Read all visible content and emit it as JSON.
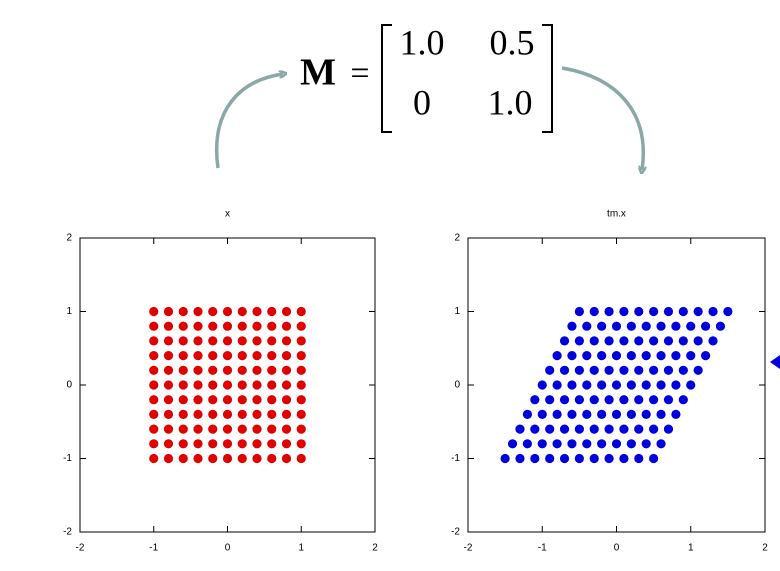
{
  "equation": {
    "symbol": "M",
    "equals": "=",
    "matrix": [
      [
        "1.0",
        "0.5"
      ],
      [
        "0",
        "1.0"
      ]
    ]
  },
  "chart_data": [
    {
      "type": "scatter",
      "title": "x",
      "color": "#e00000",
      "xlim": [
        -2,
        2
      ],
      "ylim": [
        -2,
        2
      ],
      "xticks": [
        -2,
        -1,
        0,
        1,
        2
      ],
      "yticks": [
        -2,
        -1,
        0,
        1,
        2
      ],
      "x": [
        -1,
        -0.8,
        -0.6,
        -0.4,
        -0.2,
        0,
        0.2,
        0.4,
        0.6,
        0.8,
        1,
        -1,
        -0.8,
        -0.6,
        -0.4,
        -0.2,
        0,
        0.2,
        0.4,
        0.6,
        0.8,
        1,
        -1,
        -0.8,
        -0.6,
        -0.4,
        -0.2,
        0,
        0.2,
        0.4,
        0.6,
        0.8,
        1,
        -1,
        -0.8,
        -0.6,
        -0.4,
        -0.2,
        0,
        0.2,
        0.4,
        0.6,
        0.8,
        1,
        -1,
        -0.8,
        -0.6,
        -0.4,
        -0.2,
        0,
        0.2,
        0.4,
        0.6,
        0.8,
        1,
        -1,
        -0.8,
        -0.6,
        -0.4,
        -0.2,
        0,
        0.2,
        0.4,
        0.6,
        0.8,
        1,
        -1,
        -0.8,
        -0.6,
        -0.4,
        -0.2,
        0,
        0.2,
        0.4,
        0.6,
        0.8,
        1,
        -1,
        -0.8,
        -0.6,
        -0.4,
        -0.2,
        0,
        0.2,
        0.4,
        0.6,
        0.8,
        1,
        -1,
        -0.8,
        -0.6,
        -0.4,
        -0.2,
        0,
        0.2,
        0.4,
        0.6,
        0.8,
        1,
        -1,
        -0.8,
        -0.6,
        -0.4,
        -0.2,
        0,
        0.2,
        0.4,
        0.6,
        0.8,
        1,
        -1,
        -0.8,
        -0.6,
        -0.4,
        -0.2,
        0,
        0.2,
        0.4,
        0.6,
        0.8,
        1
      ],
      "values": [
        -1,
        -1,
        -1,
        -1,
        -1,
        -1,
        -1,
        -1,
        -1,
        -1,
        -1,
        -0.8,
        -0.8,
        -0.8,
        -0.8,
        -0.8,
        -0.8,
        -0.8,
        -0.8,
        -0.8,
        -0.8,
        -0.8,
        -0.6,
        -0.6,
        -0.6,
        -0.6,
        -0.6,
        -0.6,
        -0.6,
        -0.6,
        -0.6,
        -0.6,
        -0.6,
        -0.4,
        -0.4,
        -0.4,
        -0.4,
        -0.4,
        -0.4,
        -0.4,
        -0.4,
        -0.4,
        -0.4,
        -0.4,
        -0.2,
        -0.2,
        -0.2,
        -0.2,
        -0.2,
        -0.2,
        -0.2,
        -0.2,
        -0.2,
        -0.2,
        -0.2,
        0,
        0,
        0,
        0,
        0,
        0,
        0,
        0,
        0,
        0,
        0,
        0.2,
        0.2,
        0.2,
        0.2,
        0.2,
        0.2,
        0.2,
        0.2,
        0.2,
        0.2,
        0.2,
        0.4,
        0.4,
        0.4,
        0.4,
        0.4,
        0.4,
        0.4,
        0.4,
        0.4,
        0.4,
        0.4,
        0.6,
        0.6,
        0.6,
        0.6,
        0.6,
        0.6,
        0.6,
        0.6,
        0.6,
        0.6,
        0.6,
        0.8,
        0.8,
        0.8,
        0.8,
        0.8,
        0.8,
        0.8,
        0.8,
        0.8,
        0.8,
        0.8,
        1,
        1,
        1,
        1,
        1,
        1,
        1,
        1,
        1,
        1,
        1
      ]
    },
    {
      "type": "scatter",
      "title": "tm.x",
      "color": "#0000dd",
      "xlim": [
        -2,
        2
      ],
      "ylim": [
        -2,
        2
      ],
      "xticks": [
        -2,
        -1,
        0,
        1,
        2
      ],
      "yticks": [
        -2,
        -1,
        0,
        1,
        2
      ],
      "x": [
        -1.5,
        -1.3,
        -1.1,
        -0.9,
        -0.7,
        -0.5,
        -0.3,
        -0.1,
        0.1,
        0.3,
        0.5,
        -1.4,
        -1.2,
        -1,
        -0.8,
        -0.6,
        -0.4,
        -0.2,
        0,
        0.2,
        0.4,
        0.6,
        -1.3,
        -1.1,
        -0.9,
        -0.7,
        -0.5,
        -0.3,
        -0.1,
        0.1,
        0.3,
        0.5,
        0.7,
        -1.2,
        -1,
        -0.8,
        -0.6,
        -0.4,
        -0.2,
        0,
        0.2,
        0.4,
        0.6,
        0.8,
        -1.1,
        -0.9,
        -0.7,
        -0.5,
        -0.3,
        -0.1,
        0.1,
        0.3,
        0.5,
        0.7,
        0.9,
        -1,
        -0.8,
        -0.6,
        -0.4,
        -0.2,
        0,
        0.2,
        0.4,
        0.6,
        0.8,
        1,
        -0.9,
        -0.7,
        -0.5,
        -0.3,
        -0.1,
        0.1,
        0.3,
        0.5,
        0.7,
        0.9,
        1.1,
        -0.8,
        -0.6,
        -0.4,
        -0.2,
        0,
        0.2,
        0.4,
        0.6,
        0.8,
        1,
        1.2,
        -0.7,
        -0.5,
        -0.3,
        -0.1,
        0.1,
        0.3,
        0.5,
        0.7,
        0.9,
        1.1,
        1.3,
        -0.6,
        -0.4,
        -0.2,
        0,
        0.2,
        0.4,
        0.6,
        0.8,
        1,
        1.2,
        1.4,
        -0.5,
        -0.3,
        -0.1,
        0.1,
        0.3,
        0.5,
        0.7,
        0.9,
        1.1,
        1.3,
        1.5
      ],
      "values": [
        -1,
        -1,
        -1,
        -1,
        -1,
        -1,
        -1,
        -1,
        -1,
        -1,
        -1,
        -0.8,
        -0.8,
        -0.8,
        -0.8,
        -0.8,
        -0.8,
        -0.8,
        -0.8,
        -0.8,
        -0.8,
        -0.8,
        -0.6,
        -0.6,
        -0.6,
        -0.6,
        -0.6,
        -0.6,
        -0.6,
        -0.6,
        -0.6,
        -0.6,
        -0.6,
        -0.4,
        -0.4,
        -0.4,
        -0.4,
        -0.4,
        -0.4,
        -0.4,
        -0.4,
        -0.4,
        -0.4,
        -0.4,
        -0.2,
        -0.2,
        -0.2,
        -0.2,
        -0.2,
        -0.2,
        -0.2,
        -0.2,
        -0.2,
        -0.2,
        -0.2,
        0,
        0,
        0,
        0,
        0,
        0,
        0,
        0,
        0,
        0,
        0,
        0.2,
        0.2,
        0.2,
        0.2,
        0.2,
        0.2,
        0.2,
        0.2,
        0.2,
        0.2,
        0.2,
        0.4,
        0.4,
        0.4,
        0.4,
        0.4,
        0.4,
        0.4,
        0.4,
        0.4,
        0.4,
        0.4,
        0.6,
        0.6,
        0.6,
        0.6,
        0.6,
        0.6,
        0.6,
        0.6,
        0.6,
        0.6,
        0.6,
        0.8,
        0.8,
        0.8,
        0.8,
        0.8,
        0.8,
        0.8,
        0.8,
        0.8,
        0.8,
        0.8,
        1,
        1,
        1,
        1,
        1,
        1,
        1,
        1,
        1,
        1,
        1
      ]
    }
  ]
}
